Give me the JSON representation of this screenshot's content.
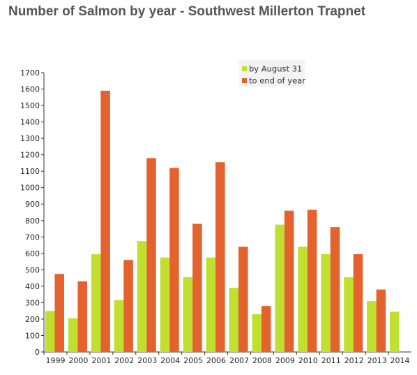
{
  "chart_data": {
    "type": "bar",
    "title": "Number of Salmon by year - Southwest Millerton Trapnet",
    "xlabel": "",
    "ylabel": "",
    "ylim": [
      0,
      1700
    ],
    "yticks": [
      0,
      100,
      200,
      300,
      400,
      500,
      600,
      700,
      800,
      900,
      1000,
      1100,
      1200,
      1300,
      1400,
      1500,
      1600,
      1700
    ],
    "categories": [
      "1999",
      "2000",
      "2001",
      "2002",
      "2003",
      "2004",
      "2005",
      "2006",
      "2007",
      "2008",
      "2009",
      "2010",
      "2011",
      "2012",
      "2013",
      "2014"
    ],
    "series": [
      {
        "name": "by August 31",
        "color": "#bfe02f",
        "values": [
          250,
          205,
          595,
          315,
          675,
          575,
          455,
          575,
          390,
          230,
          775,
          640,
          595,
          455,
          310,
          245
        ]
      },
      {
        "name": "to end of year",
        "color": "#e3622e",
        "values": [
          475,
          430,
          1590,
          560,
          1180,
          1120,
          780,
          1155,
          640,
          280,
          860,
          865,
          760,
          595,
          380,
          0
        ]
      }
    ],
    "grid": false,
    "legend_position": "top-right"
  }
}
